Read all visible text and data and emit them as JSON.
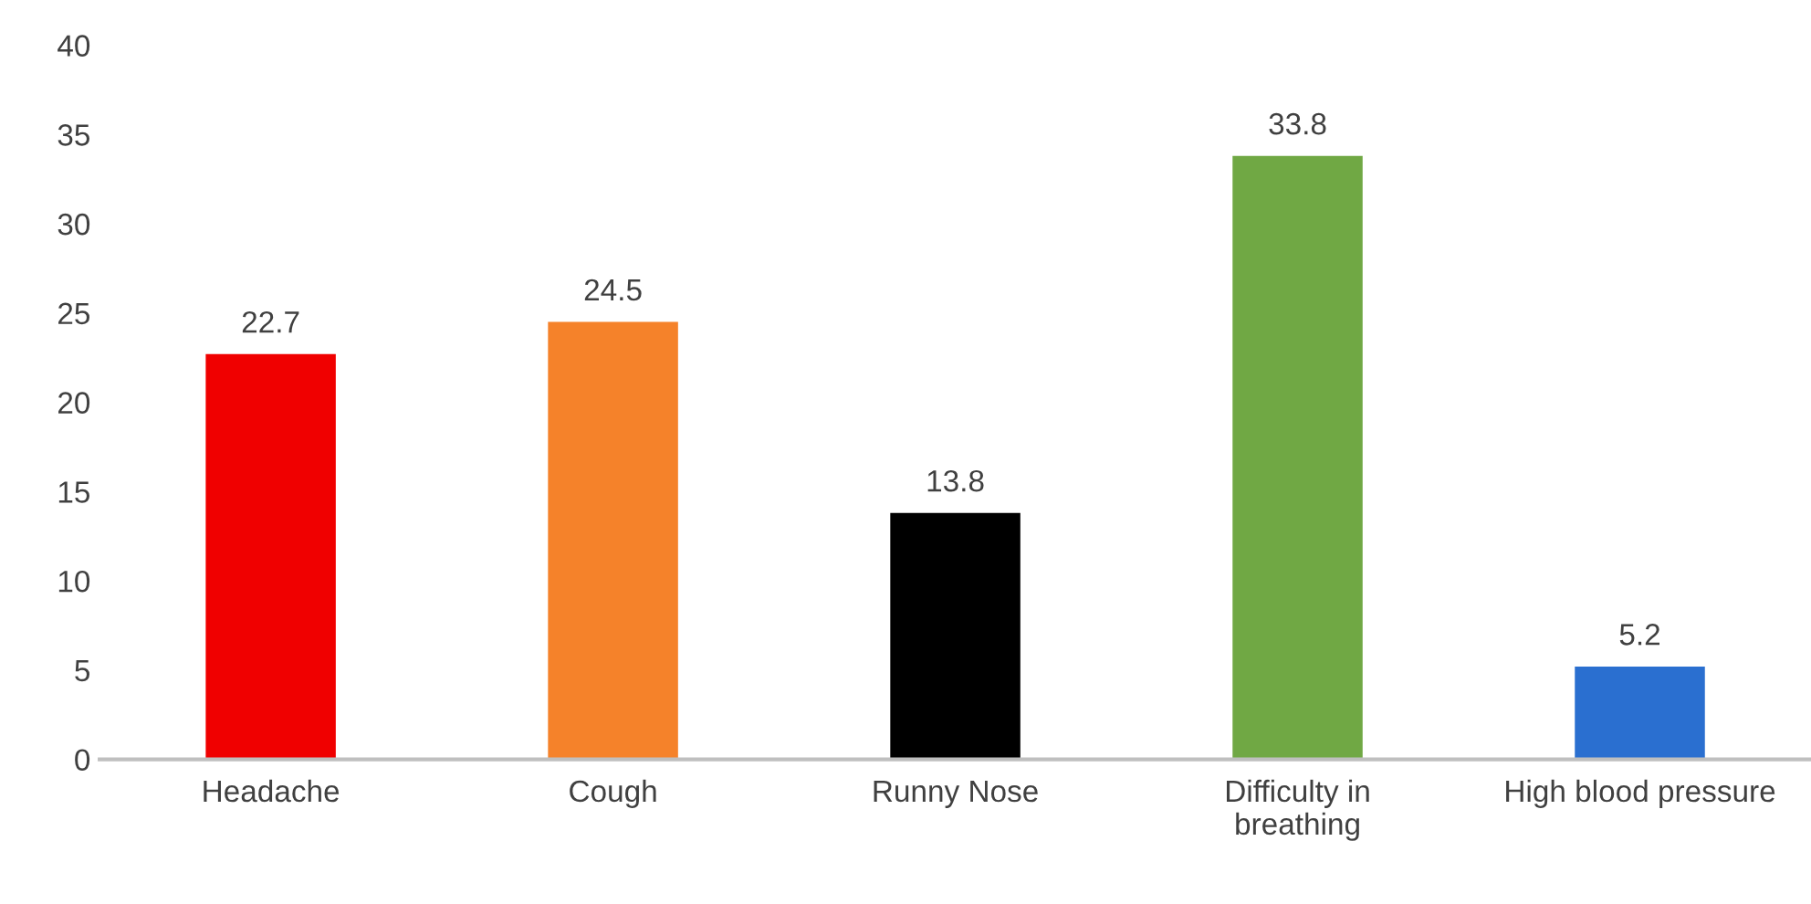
{
  "chart_data": {
    "type": "bar",
    "categories": [
      "Headache",
      "Cough",
      "Runny Nose",
      "Difficulty in breathing",
      "High blood pressure"
    ],
    "values": [
      22.7,
      24.5,
      13.8,
      33.8,
      5.2
    ],
    "colors": [
      "#f00000",
      "#f5822a",
      "#000000",
      "#70a844",
      "#2a6fd0"
    ],
    "ylim": [
      0,
      40
    ],
    "yticks": [
      0,
      5,
      10,
      15,
      20,
      25,
      30,
      35,
      40
    ],
    "data_labels": true,
    "grid": false,
    "legend": false
  }
}
